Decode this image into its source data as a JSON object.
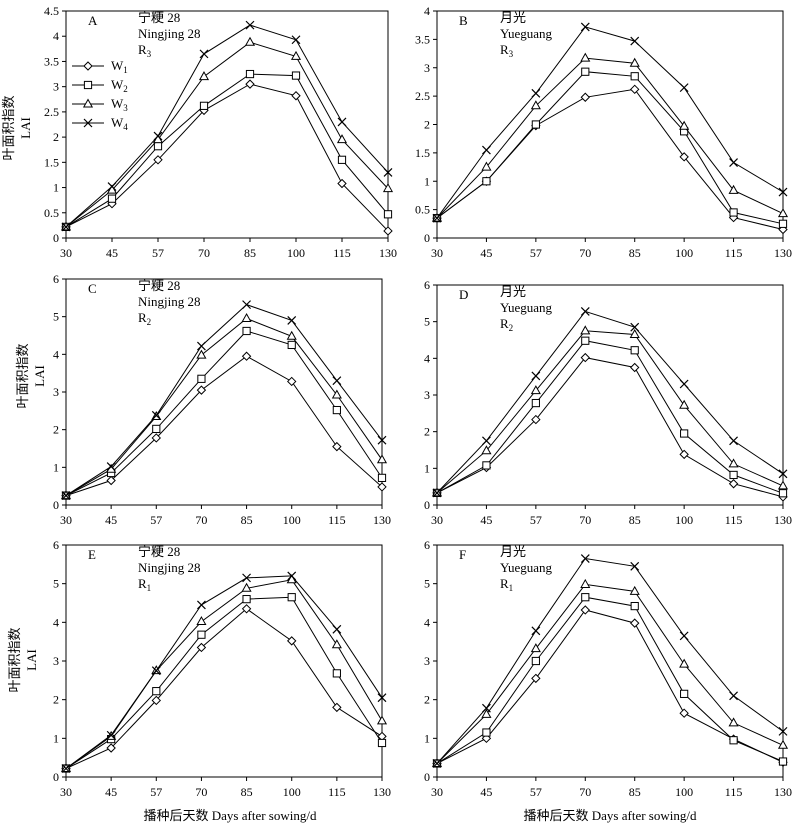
{
  "figure": {
    "ylabel_cn": "叶面积指数",
    "ylabel_en": "LAI",
    "xlabel": "播种后天数 Days after sowing/d"
  },
  "legend": {
    "entries": [
      {
        "name": "W",
        "sub": "1",
        "marker": "diamond"
      },
      {
        "name": "W",
        "sub": "2",
        "marker": "square"
      },
      {
        "name": "W",
        "sub": "3",
        "marker": "triangle"
      },
      {
        "name": "W",
        "sub": "4",
        "marker": "cross"
      }
    ]
  },
  "chart_data": [
    {
      "type": "line",
      "panel": "A",
      "title_lines": [
        "宁粳 28",
        "Ningjing 28",
        "R3"
      ],
      "x": [
        30,
        45,
        57,
        70,
        85,
        100,
        115,
        130
      ],
      "ylim": [
        0,
        4.5
      ],
      "yticks": [
        "0",
        "0.5",
        "1",
        "1.5",
        "2",
        "2.5",
        "3",
        "3.5",
        "4",
        "4.5"
      ],
      "series": [
        {
          "name": "W1",
          "values": [
            0.22,
            0.68,
            1.55,
            2.53,
            3.05,
            2.82,
            1.08,
            0.14
          ]
        },
        {
          "name": "W2",
          "values": [
            0.22,
            0.78,
            1.82,
            2.62,
            3.25,
            3.22,
            1.55,
            0.47
          ]
        },
        {
          "name": "W3",
          "values": [
            0.22,
            0.95,
            1.95,
            3.2,
            3.88,
            3.6,
            1.95,
            0.98
          ]
        },
        {
          "name": "W4",
          "values": [
            0.22,
            1.02,
            2.02,
            3.65,
            4.22,
            3.93,
            2.3,
            1.3
          ]
        }
      ]
    },
    {
      "type": "line",
      "panel": "B",
      "title_lines": [
        "月光",
        "Yueguang",
        "R3"
      ],
      "x": [
        30,
        45,
        57,
        70,
        85,
        100,
        115,
        130
      ],
      "ylim": [
        0,
        4
      ],
      "yticks": [
        "0",
        "0.5",
        "1",
        "1.5",
        "2",
        "2.5",
        "3",
        "3.5",
        "4"
      ],
      "series": [
        {
          "name": "W1",
          "values": [
            0.35,
            1.0,
            1.98,
            2.48,
            2.62,
            1.43,
            0.36,
            0.15
          ]
        },
        {
          "name": "W2",
          "values": [
            0.35,
            1.0,
            2.0,
            2.93,
            2.85,
            1.88,
            0.45,
            0.25
          ]
        },
        {
          "name": "W3",
          "values": [
            0.35,
            1.25,
            2.33,
            3.17,
            3.08,
            1.97,
            0.84,
            0.43
          ]
        },
        {
          "name": "W4",
          "values": [
            0.35,
            1.55,
            2.55,
            3.72,
            3.47,
            2.65,
            1.33,
            0.81
          ]
        }
      ]
    },
    {
      "type": "line",
      "panel": "C",
      "title_lines": [
        "宁粳 28",
        "Ningjing 28",
        "R2"
      ],
      "x": [
        30,
        45,
        57,
        70,
        85,
        100,
        115,
        130
      ],
      "ylim": [
        0,
        6
      ],
      "yticks": [
        "0",
        "1",
        "2",
        "3",
        "4",
        "5",
        "6"
      ],
      "series": [
        {
          "name": "W1",
          "values": [
            0.25,
            0.65,
            1.78,
            3.05,
            3.95,
            3.28,
            1.55,
            0.48
          ]
        },
        {
          "name": "W2",
          "values": [
            0.25,
            0.85,
            2.02,
            3.35,
            4.62,
            4.25,
            2.52,
            0.72
          ]
        },
        {
          "name": "W3",
          "values": [
            0.25,
            0.95,
            2.35,
            3.98,
            4.95,
            4.48,
            2.92,
            1.2
          ]
        },
        {
          "name": "W4",
          "values": [
            0.25,
            1.02,
            2.38,
            4.22,
            5.32,
            4.9,
            3.3,
            1.72
          ]
        }
      ]
    },
    {
      "type": "line",
      "panel": "D",
      "title_lines": [
        "月光",
        "Yueguang",
        "R2"
      ],
      "x": [
        30,
        45,
        57,
        70,
        85,
        100,
        115,
        130
      ],
      "ylim": [
        0,
        6
      ],
      "yticks": [
        "0",
        "1",
        "2",
        "3",
        "4",
        "5",
        "6"
      ],
      "series": [
        {
          "name": "W1",
          "values": [
            0.33,
            1.02,
            2.33,
            4.02,
            3.75,
            1.38,
            0.58,
            0.22
          ]
        },
        {
          "name": "W2",
          "values": [
            0.33,
            1.08,
            2.78,
            4.48,
            4.22,
            1.95,
            0.82,
            0.32
          ]
        },
        {
          "name": "W3",
          "values": [
            0.33,
            1.48,
            3.12,
            4.75,
            4.65,
            2.72,
            1.12,
            0.52
          ]
        },
        {
          "name": "W4",
          "values": [
            0.33,
            1.75,
            3.52,
            5.28,
            4.85,
            3.3,
            1.75,
            0.85
          ]
        }
      ]
    },
    {
      "type": "line",
      "panel": "E",
      "title_lines": [
        "宁粳 28",
        "Ningjing 28",
        "R1"
      ],
      "x": [
        30,
        45,
        57,
        70,
        85,
        100,
        115,
        130
      ],
      "ylim": [
        0,
        6
      ],
      "yticks": [
        "0",
        "1",
        "2",
        "3",
        "4",
        "5",
        "6"
      ],
      "series": [
        {
          "name": "W1",
          "values": [
            0.22,
            0.75,
            1.98,
            3.35,
            4.35,
            3.52,
            1.8,
            1.05
          ]
        },
        {
          "name": "W2",
          "values": [
            0.22,
            0.98,
            2.22,
            3.68,
            4.6,
            4.65,
            2.68,
            0.88
          ]
        },
        {
          "name": "W3",
          "values": [
            0.22,
            1.05,
            2.75,
            4.02,
            4.88,
            5.1,
            3.42,
            1.45
          ]
        },
        {
          "name": "W4",
          "values": [
            0.22,
            1.08,
            2.75,
            4.45,
            5.15,
            5.2,
            3.82,
            2.05
          ]
        }
      ]
    },
    {
      "type": "line",
      "panel": "F",
      "title_lines": [
        "月光",
        "Yueguang",
        "R1"
      ],
      "x": [
        30,
        45,
        57,
        70,
        85,
        100,
        115,
        130
      ],
      "ylim": [
        0,
        6
      ],
      "yticks": [
        "0",
        "1",
        "2",
        "3",
        "4",
        "5",
        "6"
      ],
      "series": [
        {
          "name": "W1",
          "values": [
            0.35,
            1.0,
            2.55,
            4.32,
            3.98,
            1.65,
            0.98,
            0.38
          ]
        },
        {
          "name": "W2",
          "values": [
            0.35,
            1.15,
            3.0,
            4.65,
            4.42,
            2.15,
            0.95,
            0.4
          ]
        },
        {
          "name": "W3",
          "values": [
            0.35,
            1.62,
            3.32,
            4.98,
            4.8,
            2.92,
            1.4,
            0.82
          ]
        },
        {
          "name": "W4",
          "values": [
            0.35,
            1.78,
            3.78,
            5.65,
            5.45,
            3.65,
            2.1,
            1.18
          ]
        }
      ]
    }
  ]
}
